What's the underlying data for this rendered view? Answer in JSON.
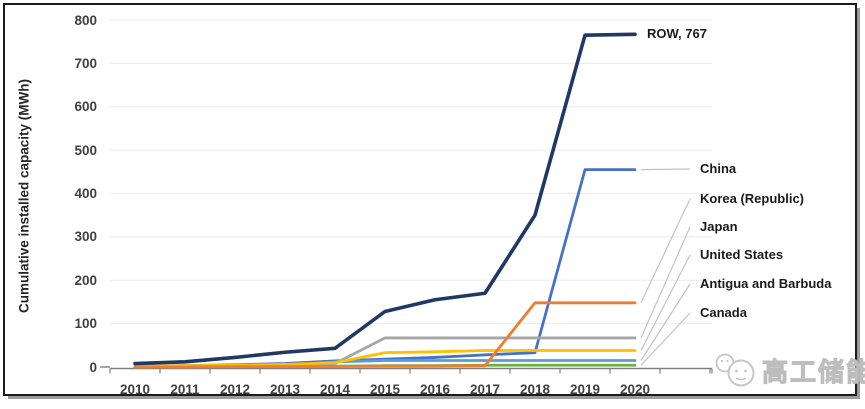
{
  "figure": {
    "ylabel": "Cumulative installed capacity (MWh)",
    "watermark_text": "高工储能",
    "watermark_icon": "wechat-chat-bubbles-icon",
    "frame_color": "#1a1a1a",
    "grid_color": "#ebebeb",
    "axis_color": "#808080",
    "leader_color": "#c3c3c3",
    "tick_color": "#404040",
    "label_color": "#1a1a1a"
  },
  "chart_data": {
    "type": "line",
    "title": "",
    "xlabel": "",
    "ylabel": "Cumulative installed capacity (MWh)",
    "x": [
      2010,
      2011,
      2012,
      2013,
      2014,
      2015,
      2016,
      2017,
      2018,
      2019,
      2020
    ],
    "ylim": [
      0,
      800
    ],
    "ytick_step": 100,
    "grid": true,
    "legend_position": "right-edge annotations with gray leader lines",
    "series": [
      {
        "name": "ROW",
        "color": "#1F3864",
        "line_width": 3.6,
        "end_label": "ROW, 767",
        "values": [
          8,
          12,
          22,
          34,
          43,
          128,
          155,
          170,
          350,
          765,
          767
        ]
      },
      {
        "name": "China",
        "color": "#4472C4",
        "line_width": 2.8,
        "values": [
          2,
          3,
          5,
          8,
          14,
          18,
          22,
          28,
          33,
          455,
          455
        ]
      },
      {
        "name": "Korea (Republic)",
        "color": "#ED7D31",
        "line_width": 2.8,
        "values": [
          0,
          0,
          1,
          1,
          1,
          2,
          2,
          3,
          148,
          148,
          148
        ]
      },
      {
        "name": "Japan",
        "color": "#A5A5A5",
        "line_width": 2.8,
        "values": [
          1,
          2,
          3,
          5,
          8,
          67,
          67,
          67,
          67,
          67,
          67
        ]
      },
      {
        "name": "United States",
        "color": "#FFC000",
        "line_width": 2.8,
        "values": [
          2,
          3,
          4,
          6,
          10,
          33,
          35,
          38,
          38,
          38,
          38
        ]
      },
      {
        "name": "Antigua and Barbuda",
        "color": "#5B9BD5",
        "line_width": 2.8,
        "values": [
          1,
          1,
          2,
          3,
          12,
          15,
          15,
          15,
          15,
          15,
          15
        ]
      },
      {
        "name": "Canada",
        "color": "#70AD47",
        "line_width": 2.8,
        "values": [
          0,
          1,
          1,
          2,
          2,
          3,
          3,
          4,
          4,
          4,
          4
        ]
      }
    ]
  }
}
